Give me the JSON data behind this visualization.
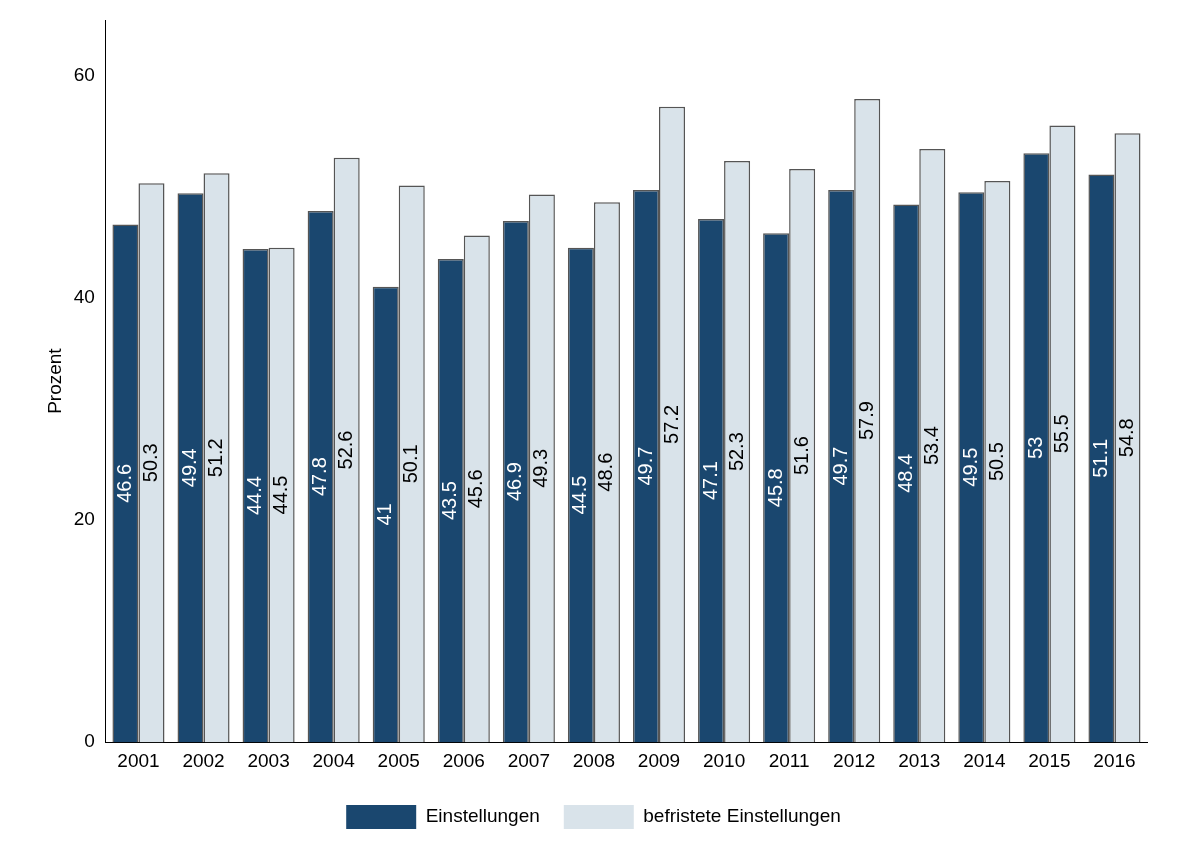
{
  "chart_data": {
    "type": "bar",
    "ylabel": "Prozent",
    "categories": [
      "2001",
      "2002",
      "2003",
      "2004",
      "2005",
      "2006",
      "2007",
      "2008",
      "2009",
      "2010",
      "2011",
      "2012",
      "2013",
      "2014",
      "2015",
      "2016"
    ],
    "series": [
      {
        "name": "Einstellungen",
        "color": "#1a476f",
        "values": [
          46.6,
          49.4,
          44.4,
          47.8,
          41,
          43.5,
          46.9,
          44.5,
          49.7,
          47.1,
          45.8,
          49.7,
          48.4,
          49.5,
          53,
          51.1
        ]
      },
      {
        "name": "befristete Einstellungen",
        "color": "#d9e3ea",
        "values": [
          50.3,
          51.2,
          44.5,
          52.6,
          50.1,
          45.6,
          49.3,
          48.6,
          57.2,
          52.3,
          51.6,
          57.9,
          53.4,
          50.5,
          55.5,
          54.8
        ]
      }
    ],
    "ylim": [
      0,
      65
    ],
    "yticks": [
      0,
      20,
      40,
      60
    ],
    "grid": false,
    "legend": "bottom",
    "data_labels": true
  }
}
